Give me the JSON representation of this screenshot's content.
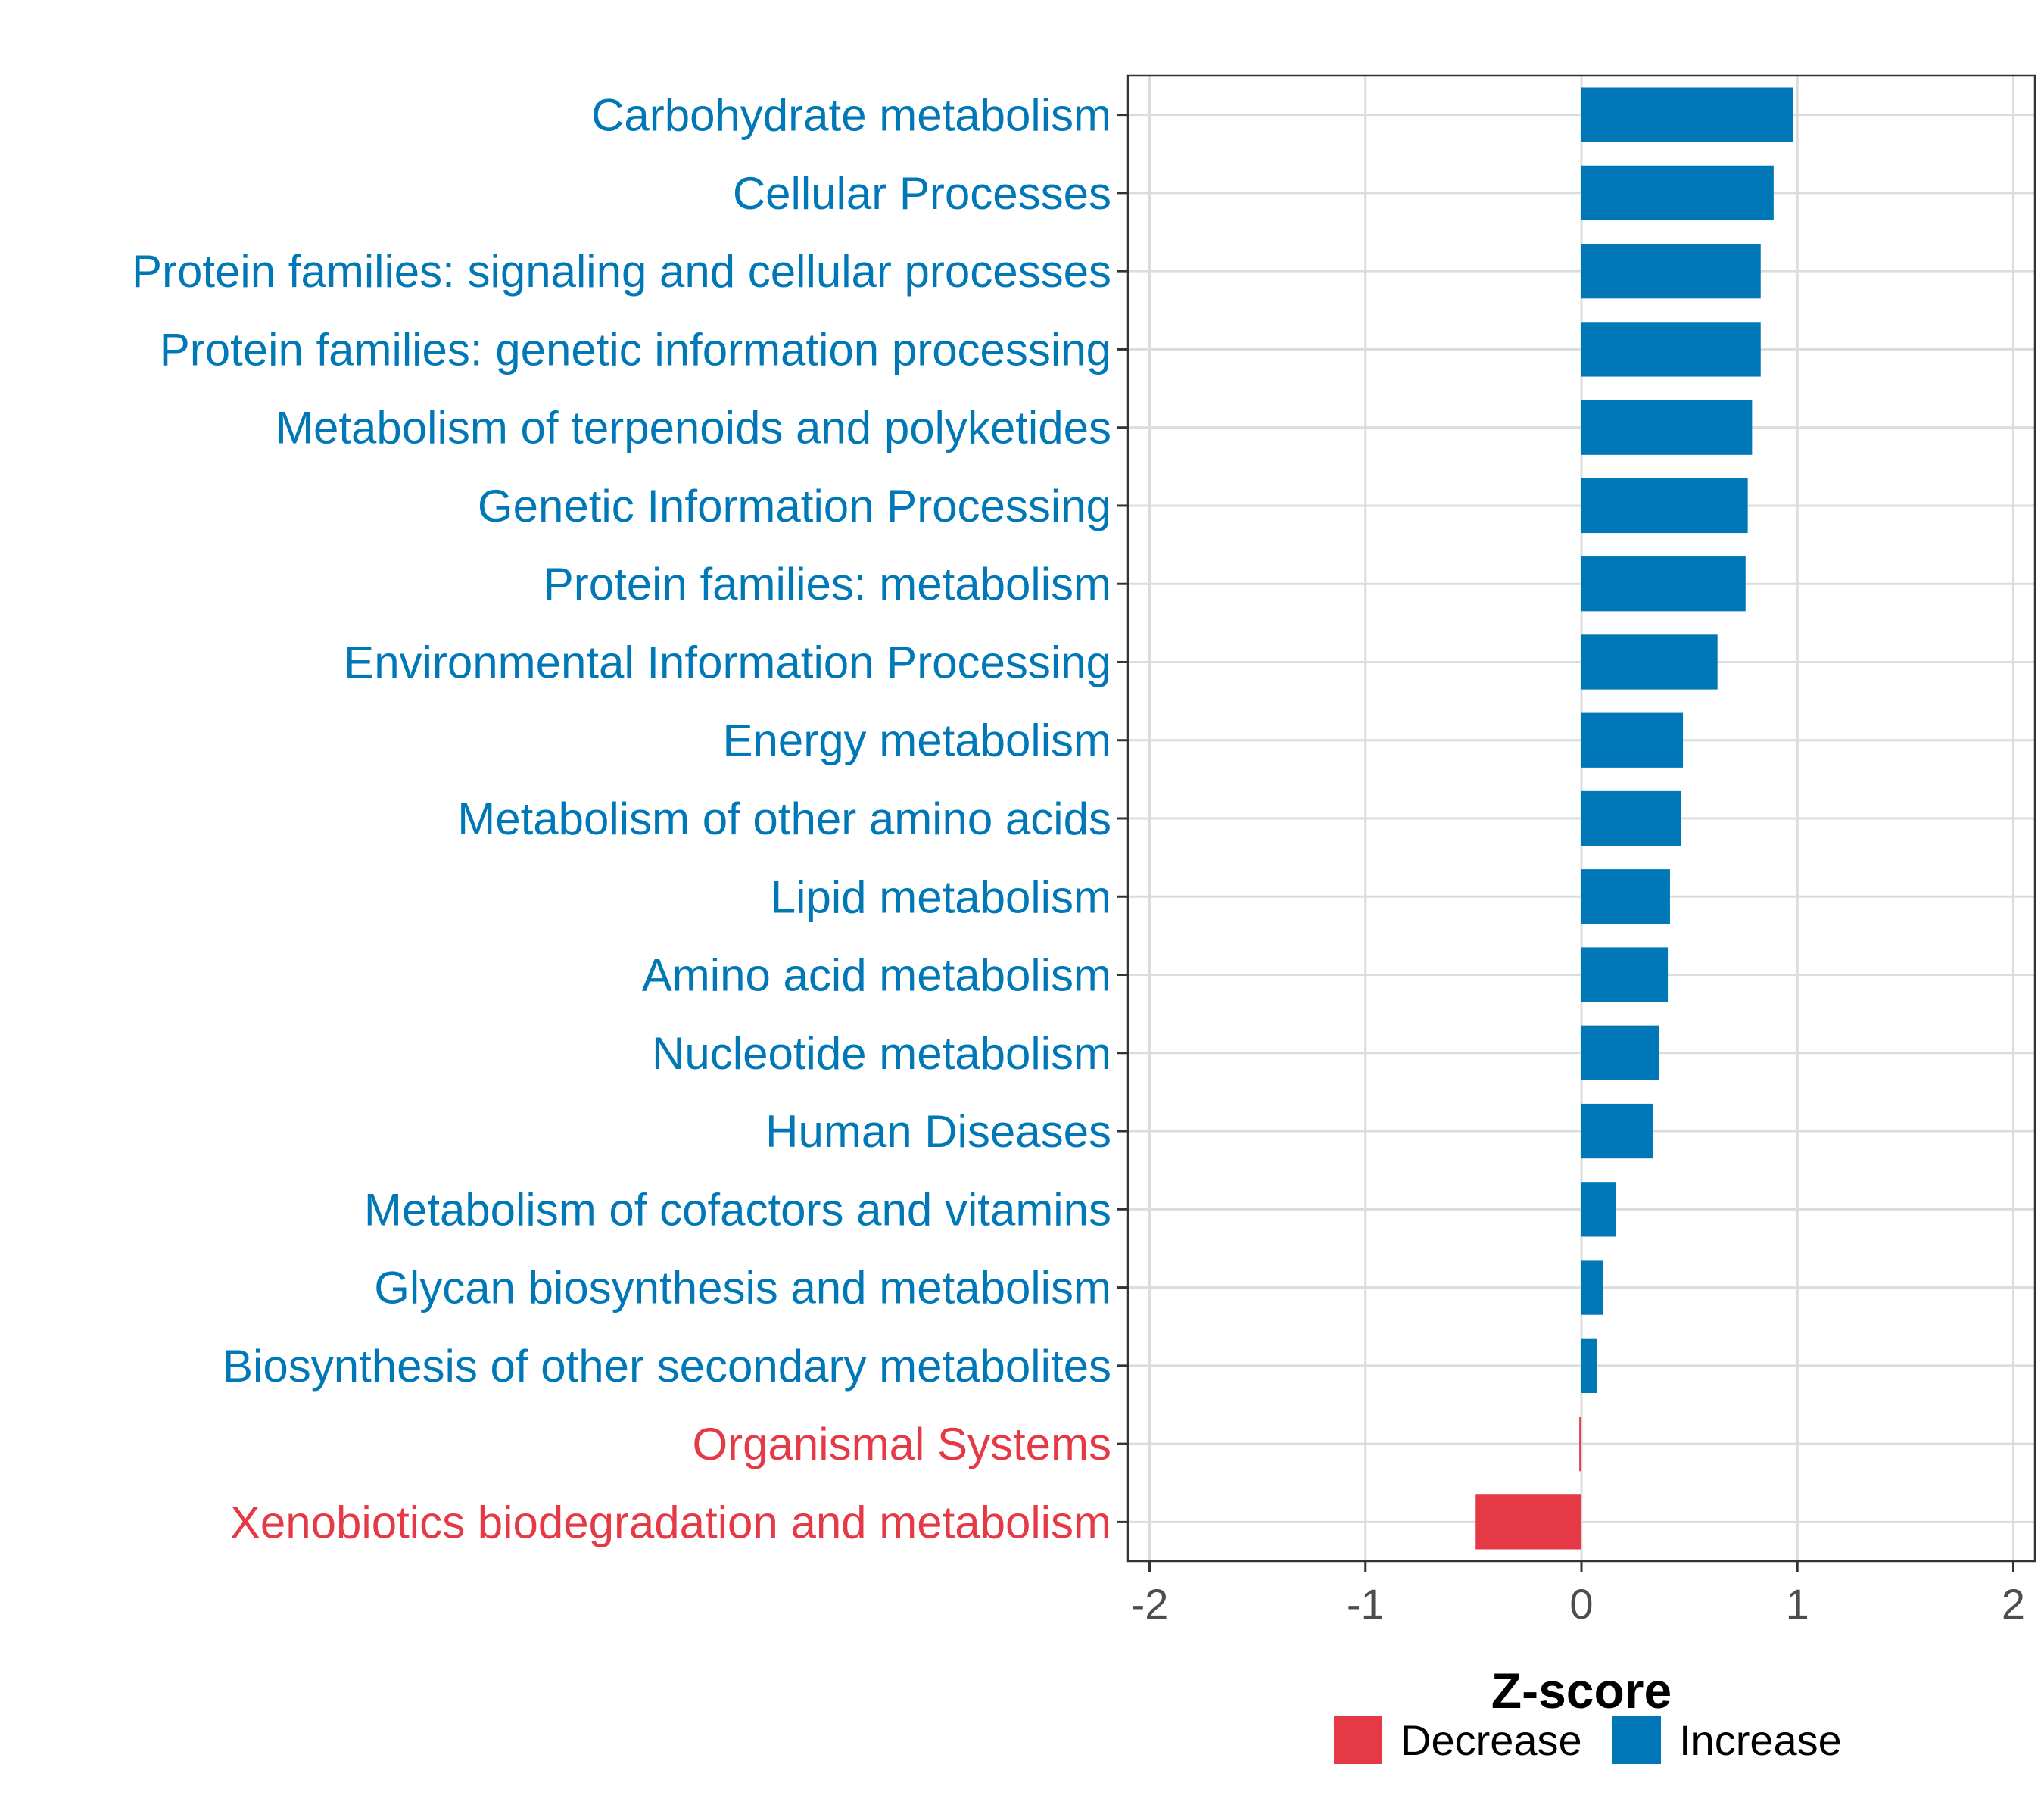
{
  "chart_data": {
    "type": "bar",
    "orientation": "horizontal",
    "xlabel": "Z-score",
    "ylabel": "",
    "xlim": [
      -2.1,
      2.1
    ],
    "xticks": [
      -2,
      -1,
      0,
      1,
      2
    ],
    "xtick_labels": [
      "-2",
      "-1",
      "0",
      "1",
      "2"
    ],
    "grid": true,
    "legend_position": "bottom",
    "colors": {
      "Decrease": "#E63946",
      "Increase": "#0077B6"
    },
    "legend": [
      {
        "key": "Decrease",
        "label": "Decrease"
      },
      {
        "key": "Increase",
        "label": "Increase"
      }
    ],
    "categories": [
      "Carbohydrate metabolism",
      "Cellular Processes",
      "Protein families: signaling and cellular processes",
      "Protein families: genetic information processing",
      "Metabolism of terpenoids and polyketides",
      "Genetic Information Processing",
      "Protein families: metabolism",
      "Environmental Information Processing",
      "Energy metabolism",
      "Metabolism of other amino acids",
      "Lipid metabolism",
      "Amino acid metabolism",
      "Nucleotide metabolism",
      "Human Diseases",
      "Metabolism of cofactors and vitamins",
      "Glycan biosynthesis and metabolism",
      "Biosynthesis of other secondary metabolites",
      "Organismal Systems",
      "Xenobiotics biodegradation and metabolism"
    ],
    "values": [
      0.98,
      0.89,
      0.83,
      0.83,
      0.79,
      0.77,
      0.76,
      0.63,
      0.47,
      0.46,
      0.41,
      0.4,
      0.36,
      0.33,
      0.16,
      0.1,
      0.07,
      -0.01,
      -0.49
    ],
    "groups": [
      "Increase",
      "Increase",
      "Increase",
      "Increase",
      "Increase",
      "Increase",
      "Increase",
      "Increase",
      "Increase",
      "Increase",
      "Increase",
      "Increase",
      "Increase",
      "Increase",
      "Increase",
      "Increase",
      "Increase",
      "Decrease",
      "Decrease"
    ]
  }
}
